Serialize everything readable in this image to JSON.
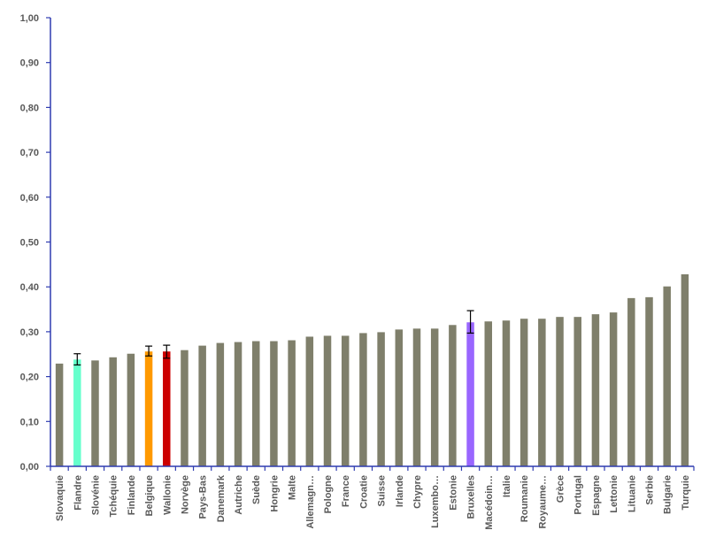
{
  "chart_data": {
    "type": "bar",
    "title": "",
    "xlabel": "",
    "ylabel": "",
    "ylim": [
      0,
      1
    ],
    "y_ticks": [
      "0,00",
      "0,10",
      "0,20",
      "0,30",
      "0,40",
      "0,50",
      "0,60",
      "0,70",
      "0,80",
      "0,90",
      "1,00"
    ],
    "grid": false,
    "legend": "none",
    "default_color": "#7f7f6b",
    "axis_color": "#2e3bb0",
    "error_bar_color": "#000000",
    "categories": [
      "Slovaquie",
      "Flandre",
      "Slovénie",
      "Tchéquie",
      "Finlande",
      "Belgique",
      "Wallonie",
      "Norvège",
      "Pays-Bas",
      "Danemark",
      "Autriche",
      "Suède",
      "Hongrie",
      "Malte",
      "Allemagn…",
      "Pologne",
      "France",
      "Croatie",
      "Suisse",
      "Irlande",
      "Chypre",
      "Luxembo…",
      "Estonie",
      "Bruxelles",
      "Macédoin…",
      "Italie",
      "Roumanie",
      "Royaume…",
      "Grèce",
      "Portugal",
      "Espagne",
      "Lettonie",
      "Lituanie",
      "Serbie",
      "Bulgarie",
      "Turquie"
    ],
    "values": [
      0.229,
      0.238,
      0.236,
      0.243,
      0.251,
      0.256,
      0.256,
      0.259,
      0.269,
      0.275,
      0.277,
      0.279,
      0.279,
      0.281,
      0.289,
      0.291,
      0.291,
      0.297,
      0.299,
      0.305,
      0.307,
      0.307,
      0.315,
      0.321,
      0.323,
      0.325,
      0.329,
      0.329,
      0.333,
      0.333,
      0.339,
      0.343,
      0.375,
      0.377,
      0.401,
      0.428
    ],
    "highlight_colors": {
      "Flandre": "#66ffcc",
      "Belgique": "#ff9900",
      "Wallonie": "#cc0000",
      "Bruxelles": "#9966ff"
    },
    "error_bars": {
      "Flandre": [
        0.226,
        0.251
      ],
      "Belgique": [
        0.246,
        0.268
      ],
      "Wallonie": [
        0.241,
        0.27
      ],
      "Bruxelles": [
        0.297,
        0.347
      ]
    }
  }
}
